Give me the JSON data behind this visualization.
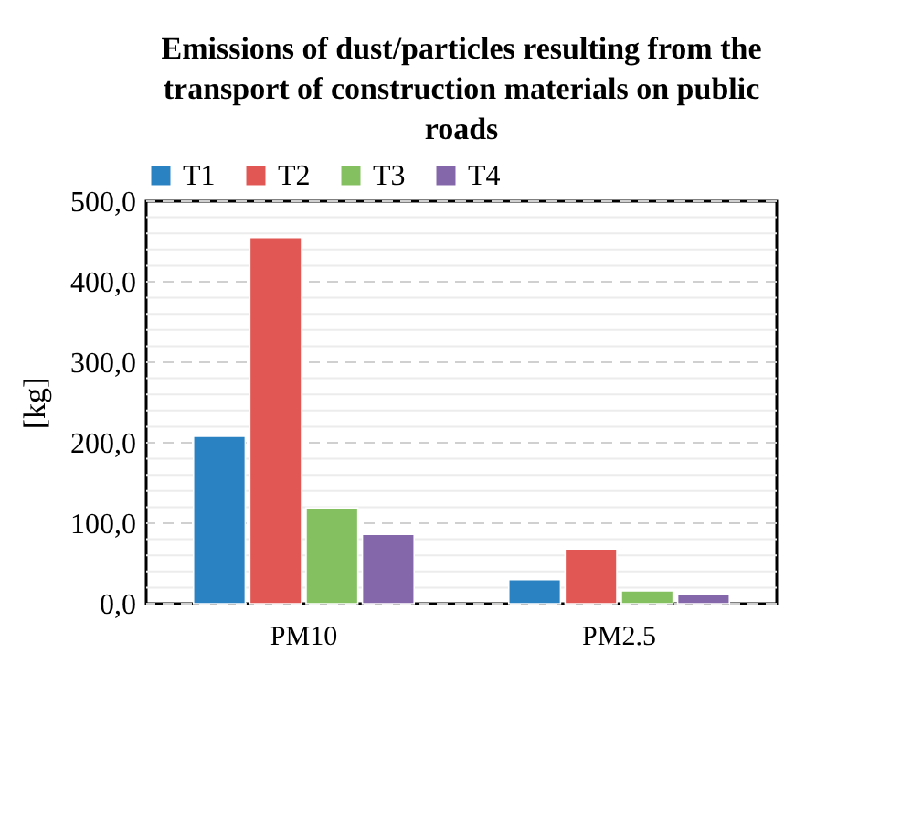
{
  "chart_data": {
    "type": "bar",
    "title": "Emissions of dust/particles resulting from the transport of construction materials on public roads",
    "ylabel": "[kg]",
    "categories": [
      "PM10",
      "PM2.5"
    ],
    "series": [
      {
        "name": "T1",
        "color": "#2a82c2",
        "values": [
          208,
          30
        ]
      },
      {
        "name": "T2",
        "color": "#e05753",
        "values": [
          455,
          68
        ]
      },
      {
        "name": "T3",
        "color": "#84c060",
        "values": [
          119,
          16
        ]
      },
      {
        "name": "T4",
        "color": "#8466aa",
        "values": [
          86,
          11
        ]
      }
    ],
    "ylim": [
      0,
      500
    ],
    "yticks": [
      {
        "value": 0,
        "label": "0,0"
      },
      {
        "value": 20,
        "label": null
      },
      {
        "value": 40,
        "label": null
      },
      {
        "value": 60,
        "label": null
      },
      {
        "value": 80,
        "label": null
      },
      {
        "value": 100,
        "label": "100,0"
      },
      {
        "value": 120,
        "label": null
      },
      {
        "value": 140,
        "label": null
      },
      {
        "value": 160,
        "label": null
      },
      {
        "value": 180,
        "label": null
      },
      {
        "value": 200,
        "label": "200,0"
      },
      {
        "value": 220,
        "label": null
      },
      {
        "value": 240,
        "label": null
      },
      {
        "value": 260,
        "label": null
      },
      {
        "value": 280,
        "label": null
      },
      {
        "value": 300,
        "label": "300,0"
      },
      {
        "value": 320,
        "label": null
      },
      {
        "value": 340,
        "label": null
      },
      {
        "value": 360,
        "label": null
      },
      {
        "value": 380,
        "label": null
      },
      {
        "value": 400,
        "label": "400,0"
      },
      {
        "value": 420,
        "label": null
      },
      {
        "value": 440,
        "label": null
      },
      {
        "value": 460,
        "label": null
      },
      {
        "value": 480,
        "label": null
      },
      {
        "value": 500,
        "label": "500,0"
      }
    ],
    "grid": true,
    "legend": "top"
  }
}
